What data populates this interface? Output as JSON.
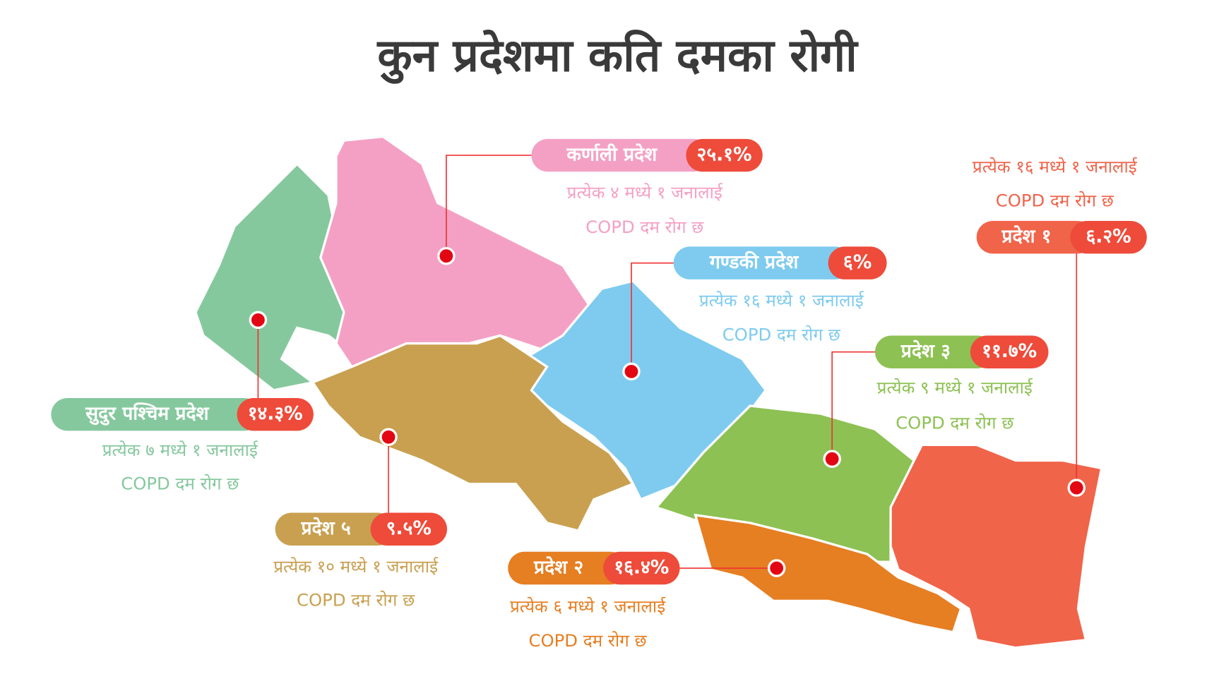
{
  "title": "कुन प्रदेशमा कति दमका रोगी",
  "provinces": [
    {
      "name": "सुदुर पश्चिम प्रदेश",
      "percent": "१४.३%",
      "line1": "प्रत्येक ७ मध्ये १ जनालाई",
      "line2": "COPD दम रोग छ",
      "color": "#86c89e"
    },
    {
      "name": "कर्णाली प्रदेश",
      "percent": "२५.१%",
      "line1": "प्रत्येक ४ मध्ये १ जनालाई",
      "line2": "COPD दम रोग छ",
      "color": "#f4a0c4"
    },
    {
      "name": "गण्डकी प्रदेश",
      "percent": "६%",
      "line1": "प्रत्येक १६ मध्ये १ जनालाई",
      "line2": "COPD दम रोग छ",
      "color": "#7ecbef"
    },
    {
      "name": "प्रदेश ३",
      "percent": "११.७%",
      "line1": "प्रत्येक ९ मध्ये १ जनालाई",
      "line2": "COPD दम रोग छ",
      "color": "#8dc153"
    },
    {
      "name": "प्रदेश १",
      "percent": "६.२%",
      "line1": "प्रत्येक १६ मध्ये १ जनालाई",
      "line2": "COPD दम रोग छ",
      "color": "#f0644a"
    },
    {
      "name": "प्रदेश ५",
      "percent": "९.५%",
      "line1": "प्रत्येक १० मध्ये १ जनालाई",
      "line2": "COPD दम रोग छ",
      "color": "#c9a050"
    },
    {
      "name": "प्रदेश २",
      "percent": "१६.४%",
      "line1": "प्रत्येक ६ मध्ये १ जनालाई",
      "line2": "COPD दम रोग छ",
      "color": "#e67e22"
    }
  ]
}
